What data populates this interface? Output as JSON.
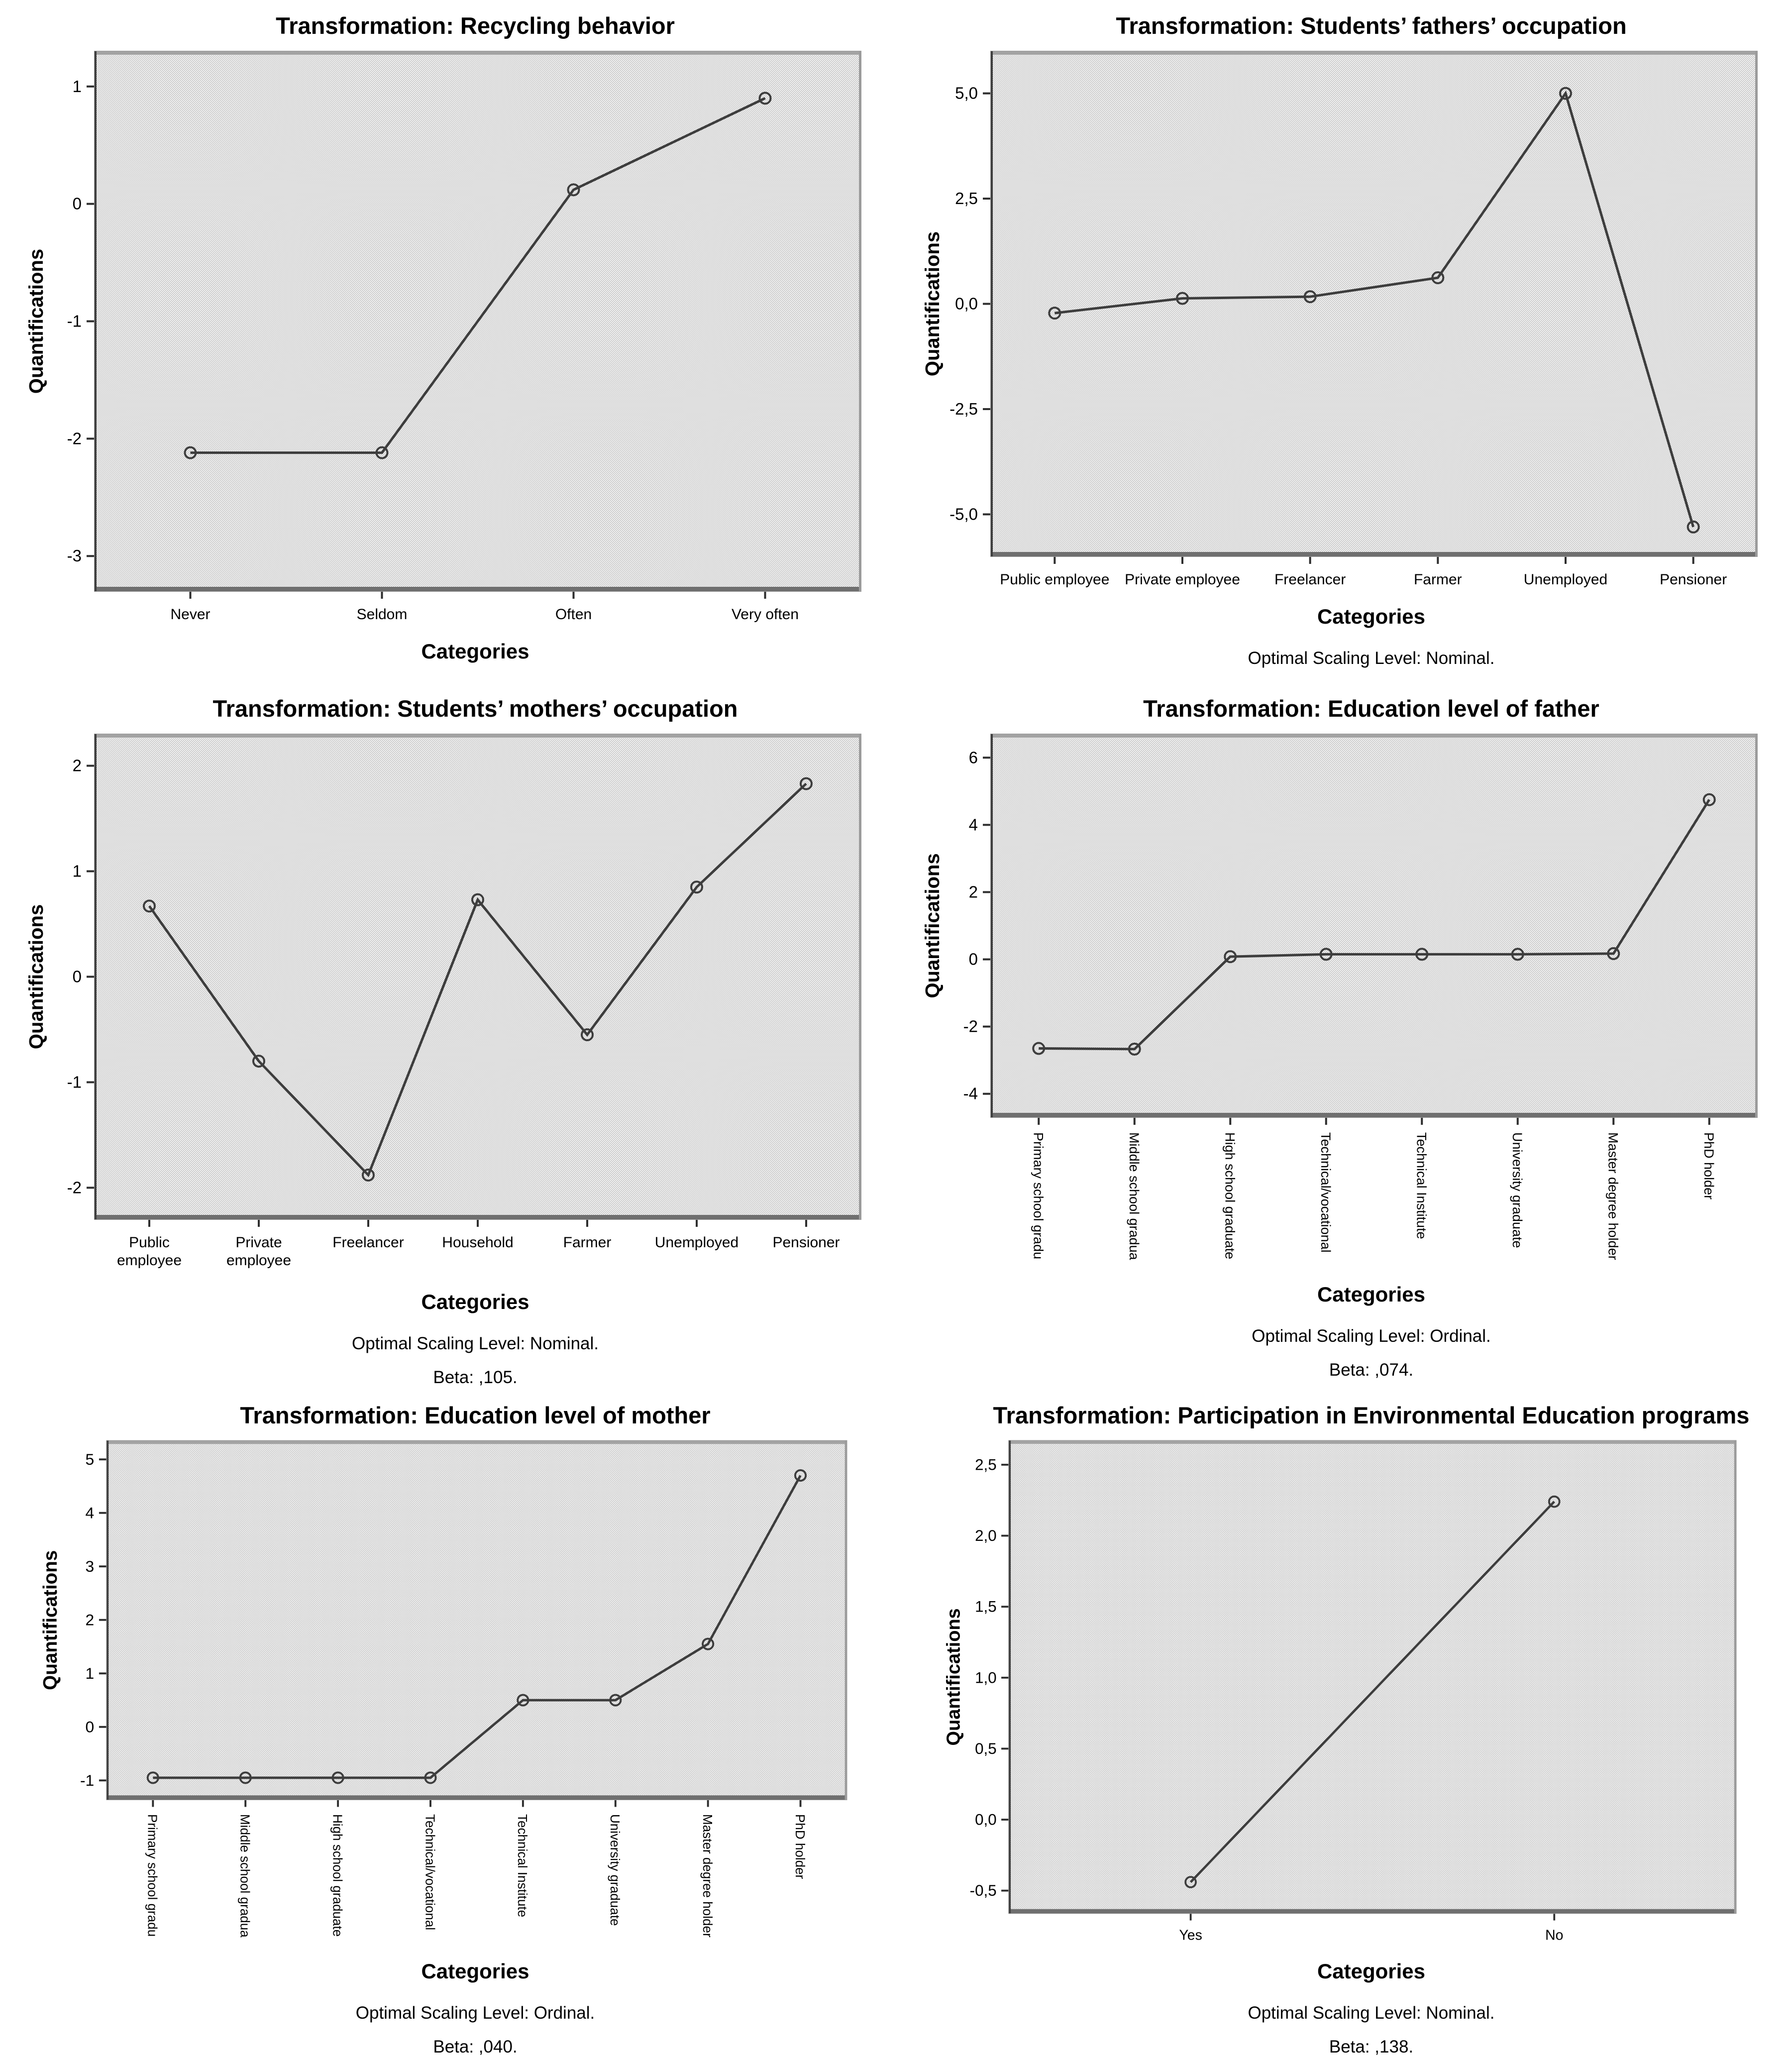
{
  "page": {
    "background": "#ffffff"
  },
  "shared": {
    "y_axis_label": "Quantifications",
    "x_axis_label": "Categories"
  },
  "colors": {
    "line": "#3d3d3d",
    "marker_stroke": "#3d3d3d",
    "plot_bg_base": "#f3f3f3",
    "plot_bg_dot": "#a0a0a0",
    "frame_gray": "#9b9b9b",
    "frame_top": "#a3a3a3",
    "frame_bottom": "#6f6f6f",
    "frame_left": "#3f3f3f",
    "tick": "#2e2e2e",
    "text": "#000000"
  },
  "chart_data": [
    {
      "type": "line",
      "title": "Transformation: Recycling behavior",
      "ylabel": "Quantifications",
      "xlabel": "Categories",
      "categories": [
        "Never",
        "Seldom",
        "Often",
        "Very often"
      ],
      "values": [
        -2.12,
        -2.12,
        0.12,
        0.9
      ],
      "ytick_labels": [
        "1",
        "0",
        "-1",
        "-2",
        "-3"
      ],
      "ytick_values": [
        1,
        0,
        -1,
        -2,
        -3
      ],
      "ylim": [
        -3.3,
        1.3
      ],
      "category_label_orientation": "horizontal",
      "grid": false,
      "legend": "none",
      "notes": []
    },
    {
      "type": "line",
      "title": "Transformation: Students’ fathers’ occupation",
      "ylabel": "Quantifications",
      "xlabel": "Categories",
      "categories": [
        "Public employee",
        "Private employee",
        "Freelancer",
        "Farmer",
        "Unemployed",
        "Pensioner"
      ],
      "values": [
        -0.22,
        0.13,
        0.17,
        0.62,
        5.0,
        -5.3
      ],
      "ytick_labels": [
        "5,0",
        "2,5",
        "0,0",
        "-2,5",
        "-5,0"
      ],
      "ytick_values": [
        5,
        2.5,
        0,
        -2.5,
        -5
      ],
      "ylim": [
        -6.0,
        6.0
      ],
      "category_label_orientation": "horizontal",
      "grid": false,
      "legend": "none",
      "notes": [
        "Optimal Scaling Level: Nominal."
      ]
    },
    {
      "type": "line",
      "title": "Transformation: Students’ mothers’ occupation",
      "ylabel": "Quantifications",
      "xlabel": "Categories",
      "categories": [
        "Public\nemployee",
        "Private\nemployee",
        "Freelancer",
        "Household",
        "Farmer",
        "Unemployed",
        "Pensioner"
      ],
      "values": [
        0.67,
        -0.8,
        -1.88,
        0.73,
        -0.55,
        0.85,
        1.83
      ],
      "ytick_labels": [
        "2",
        "1",
        "0",
        "-1",
        "-2"
      ],
      "ytick_values": [
        2,
        1,
        0,
        -1,
        -2
      ],
      "ylim": [
        -2.3,
        2.3
      ],
      "category_label_orientation": "wrap",
      "grid": false,
      "legend": "none",
      "notes": [
        "Optimal Scaling Level: Nominal.",
        "Beta: ,105."
      ]
    },
    {
      "type": "line",
      "title": "Transformation: Education level of father",
      "ylabel": "Quantifications",
      "xlabel": "Categories",
      "categories": [
        "Primary school gradu",
        "Middle school gradua",
        "High school graduate",
        "Technical/vocational",
        "Technical Institute",
        "University graduate",
        "Master degree holder",
        "PhD holder"
      ],
      "values": [
        -2.65,
        -2.67,
        0.08,
        0.15,
        0.15,
        0.15,
        0.17,
        4.75
      ],
      "ytick_labels": [
        "6",
        "4",
        "2",
        "0",
        "-2",
        "-4"
      ],
      "ytick_values": [
        6,
        4,
        2,
        0,
        -2,
        -4
      ],
      "ylim": [
        -4.7,
        6.7
      ],
      "category_label_orientation": "vertical",
      "grid": false,
      "legend": "none",
      "notes": [
        "Optimal Scaling Level: Ordinal.",
        "Beta: ,074."
      ]
    },
    {
      "type": "line",
      "title": "Transformation: Education level of mother",
      "ylabel": "Quantifications",
      "xlabel": "Categories",
      "categories": [
        "Primary school gradu",
        "Middle school gradua",
        "High school graduate",
        "Technical/vocational",
        "Technical Institute",
        "University graduate",
        "Master degree holder",
        "PhD holder"
      ],
      "values": [
        -0.95,
        -0.95,
        -0.95,
        -0.95,
        0.5,
        0.5,
        1.55,
        4.7
      ],
      "ytick_labels": [
        "5",
        "4",
        "3",
        "2",
        "1",
        "0",
        "-1"
      ],
      "ytick_values": [
        5,
        4,
        3,
        2,
        1,
        0,
        -1
      ],
      "ylim": [
        -1.36,
        5.35
      ],
      "category_label_orientation": "vertical",
      "grid": false,
      "legend": "none",
      "notes": [
        "Optimal Scaling Level: Ordinal.",
        "Beta: ,040."
      ]
    },
    {
      "type": "line",
      "title": "Transformation: Participation in Environmental Education programs",
      "ylabel": "Quantifications",
      "xlabel": "Categories",
      "categories": [
        "Yes",
        "No"
      ],
      "values": [
        -0.44,
        2.24
      ],
      "ytick_labels": [
        "2,5",
        "2,0",
        "1,5",
        "1,0",
        "0,5",
        "0,0",
        "-0,5"
      ],
      "ytick_values": [
        2.5,
        2,
        1.5,
        1,
        0.5,
        0,
        -0.5
      ],
      "ylim": [
        -0.66,
        2.67
      ],
      "category_label_orientation": "horizontal",
      "grid": false,
      "legend": "none",
      "notes": [
        "Optimal Scaling Level: Nominal.",
        "Beta: ,138."
      ]
    }
  ]
}
